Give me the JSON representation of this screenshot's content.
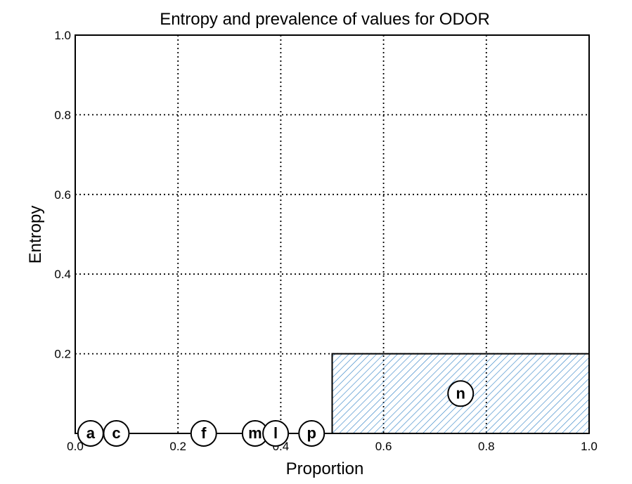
{
  "chart_data": {
    "type": "bar",
    "title": "Entropy and prevalence of values for ODOR",
    "xlabel": "Proportion",
    "ylabel": "Entropy",
    "xlim": [
      0.0,
      1.0
    ],
    "ylim": [
      0.0,
      1.0
    ],
    "xticks": [
      "0.0",
      "0.2",
      "0.4",
      "0.6",
      "0.8",
      "1.0"
    ],
    "xtick_values": [
      0.0,
      0.2,
      0.4,
      0.6,
      0.8,
      1.0
    ],
    "yticks": [
      "0.2",
      "0.4",
      "0.6",
      "0.8",
      "1.0"
    ],
    "ytick_values": [
      0.2,
      0.4,
      0.6,
      0.8,
      1.0
    ],
    "grid": true,
    "grid_style": "dotted",
    "bar_fill": "hatched",
    "hatch_color": "#3a87c8",
    "bars": [
      {
        "label": "a",
        "x_start": 0.0,
        "width": 0.049,
        "entropy": 0.0
      },
      {
        "label": "c",
        "x_start": 0.049,
        "width": 0.024,
        "entropy": 0.0
      },
      {
        "label": "f",
        "x_start": 0.073,
        "width": 0.266,
        "entropy": 0.0
      },
      {
        "label": "m",
        "x_start": 0.339,
        "width": 0.004,
        "entropy": 0.0
      },
      {
        "label": "l",
        "x_start": 0.343,
        "width": 0.049,
        "entropy": 0.0
      },
      {
        "label": "p",
        "x_start": 0.392,
        "width": 0.108,
        "entropy": 0.0
      },
      {
        "label": "n",
        "x_start": 0.5,
        "width": 0.5,
        "entropy": 0.2
      }
    ],
    "markers": [
      {
        "label": "a",
        "x": 0.03,
        "y": 0.0
      },
      {
        "label": "c",
        "x": 0.08,
        "y": 0.0
      },
      {
        "label": "f",
        "x": 0.25,
        "y": 0.0
      },
      {
        "label": "m",
        "x": 0.35,
        "y": 0.0
      },
      {
        "label": "l",
        "x": 0.39,
        "y": 0.0
      },
      {
        "label": "p",
        "x": 0.46,
        "y": 0.0
      },
      {
        "label": "n",
        "x": 0.75,
        "y": 0.1
      }
    ]
  }
}
